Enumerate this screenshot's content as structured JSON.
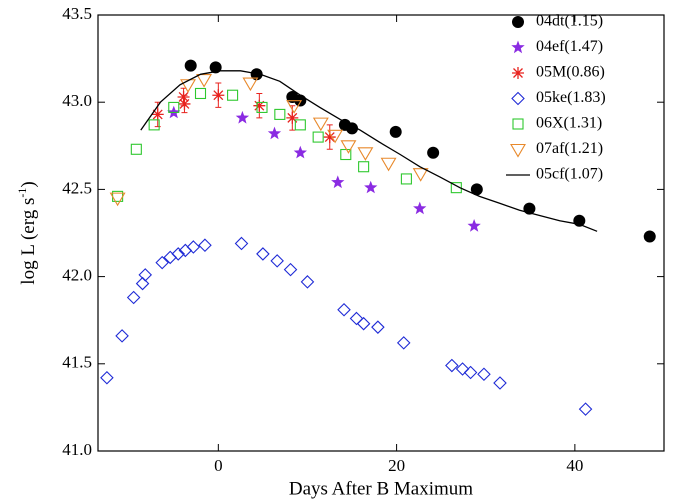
{
  "chart_data": {
    "type": "scatter",
    "x_label": "Days After B Maximum",
    "y_label": [
      "log L (erg s",
      "-1",
      ")"
    ],
    "xlim": [
      -13.5,
      50
    ],
    "xticks": [
      0,
      20,
      40
    ],
    "ylim": [
      41,
      43.5
    ],
    "yticks": [
      {
        "value": 41,
        "label": "41.0"
      },
      41.5,
      {
        "value": 42,
        "label": "42.0"
      },
      42.5,
      {
        "value": 43,
        "label": "43.0"
      },
      43.5
    ],
    "legend": "upper right",
    "series": [
      {
        "name": "04dt(1.15)",
        "color": "#000000",
        "marker": "circle",
        "x": [
          -3.1,
          -0.3,
          4.3,
          8.3,
          9.2,
          14.2,
          15.0,
          19.9,
          24.1,
          29.0,
          34.9,
          40.5,
          48.4
        ],
        "values": [
          43.21,
          43.2,
          43.16,
          43.03,
          43.01,
          42.87,
          42.85,
          42.83,
          42.71,
          42.5,
          42.39,
          42.32,
          42.23
        ]
      },
      {
        "name": "04ef(1.47)",
        "color": "#8a2be2",
        "marker": "star",
        "x": [
          -5.0,
          2.7,
          6.3,
          9.2,
          13.4,
          17.1,
          22.6,
          28.7
        ],
        "values": [
          42.94,
          42.91,
          42.82,
          42.71,
          42.54,
          42.51,
          42.39,
          42.29
        ]
      },
      {
        "name": "05M(0.86)",
        "color": "#e8231f",
        "marker": "asterisk",
        "x": [
          -6.8,
          -3.9,
          -3.8,
          0,
          4.6,
          8.3,
          12.5
        ],
        "values": [
          42.93,
          43.03,
          42.99,
          43.04,
          42.98,
          42.91,
          42.8
        ],
        "errors": [
          0.07,
          0.05,
          0.05,
          0.07,
          0.07,
          0.07,
          0.07
        ]
      },
      {
        "name": "05ke(1.83)",
        "color": "#1f2bd6",
        "marker": "diamond",
        "x": [
          -12.5,
          -10.8,
          -9.5,
          -8.5,
          -8.2,
          -6.3,
          -5.4,
          -4.5,
          -3.7,
          -2.8,
          -1.5,
          2.6,
          5.0,
          6.6,
          8.1,
          10.0,
          14.1,
          15.5,
          16.3,
          17.9,
          20.8,
          26.2,
          27.4,
          28.3,
          29.8,
          31.6,
          41.2
        ],
        "values": [
          41.42,
          41.66,
          41.88,
          41.96,
          42.01,
          42.08,
          42.11,
          42.13,
          42.15,
          42.17,
          42.18,
          42.19,
          42.13,
          42.09,
          42.04,
          41.97,
          41.81,
          41.76,
          41.73,
          41.71,
          41.62,
          41.49,
          41.47,
          41.45,
          41.44,
          41.39,
          41.24
        ]
      },
      {
        "name": "06X(1.31)",
        "color": "#2ec82e",
        "marker": "square",
        "x": [
          -11.3,
          -9.2,
          -7.2,
          -5.0,
          -2.0,
          1.6,
          4.9,
          6.9,
          9.2,
          11.2,
          14.3,
          16.3,
          21.1,
          26.7
        ],
        "values": [
          42.46,
          42.73,
          42.87,
          42.97,
          43.05,
          43.04,
          42.97,
          42.93,
          42.87,
          42.8,
          42.7,
          42.63,
          42.56,
          42.51
        ]
      },
      {
        "name": "07af(1.21)",
        "color": "#e8892b",
        "marker": "triangle-down",
        "x": [
          -11.3,
          -3.4,
          -1.6,
          3.6,
          8.5,
          11.5,
          13.1,
          14.6,
          16.5,
          19.1,
          22.7
        ],
        "values": [
          42.45,
          43.1,
          43.13,
          43.11,
          42.98,
          42.88,
          42.81,
          42.75,
          42.71,
          42.65,
          42.59
        ]
      },
      {
        "name": "05cf(1.07)",
        "color": "#000000",
        "marker": "line",
        "x": [
          -8.7,
          -6.5,
          -4.3,
          -2,
          0.2,
          2.5,
          4.7,
          6.9,
          9.2,
          11.4,
          13.7,
          15.9,
          18.1,
          20.4,
          22.6,
          24.9,
          27.1,
          29.3,
          31.6,
          33.8,
          36.1,
          38.3,
          40.5,
          42.5
        ],
        "values": [
          42.84,
          43.0,
          43.1,
          43.16,
          43.18,
          43.18,
          43.16,
          43.12,
          43.04,
          42.97,
          42.9,
          42.84,
          42.77,
          42.7,
          42.63,
          42.57,
          42.51,
          42.46,
          42.42,
          42.38,
          42.35,
          42.32,
          42.3,
          42.26
        ]
      }
    ]
  }
}
